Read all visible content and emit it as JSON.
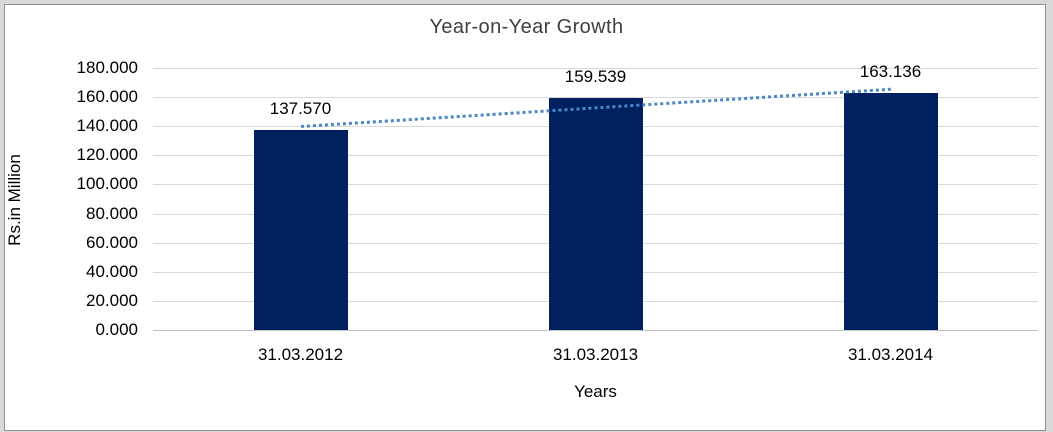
{
  "colors": {
    "bar": "#002060",
    "trendline": "#4a86c8",
    "gridline": "#d9d9d9",
    "axis_line": "#bfbfbf",
    "title_text": "#404040",
    "label_text": "#000000",
    "frame_border": "#919191",
    "frame_outer": "#d9d9d9",
    "plot_background": "#ffffff"
  },
  "chart_data": {
    "type": "bar",
    "title": "Year-on-Year Growth",
    "xlabel": "Years",
    "ylabel": "Rs.in Million",
    "categories": [
      "31.03.2012",
      "31.03.2013",
      "31.03.2014"
    ],
    "values": [
      137.57,
      159.539,
      163.136
    ],
    "data_labels": [
      "137.570",
      "159.539",
      "163.136"
    ],
    "series_name": "",
    "legend": false,
    "grid": true,
    "ylim": [
      0,
      180
    ],
    "y_ticks": [
      {
        "value": 180,
        "label": "180.000"
      },
      {
        "value": 160,
        "label": "160.000"
      },
      {
        "value": 140,
        "label": "140.000"
      },
      {
        "value": 120,
        "label": "120.000"
      },
      {
        "value": 100,
        "label": "100.000"
      },
      {
        "value": 80,
        "label": "80.000"
      },
      {
        "value": 60,
        "label": "60.000"
      },
      {
        "value": 40,
        "label": "40.000"
      },
      {
        "value": 20,
        "label": "20.000"
      },
      {
        "value": 0,
        "label": "0.000"
      }
    ],
    "trendline": {
      "type": "linear",
      "style": "dotted",
      "fitted_values": [
        140.6,
        153.4,
        166.2
      ]
    }
  }
}
